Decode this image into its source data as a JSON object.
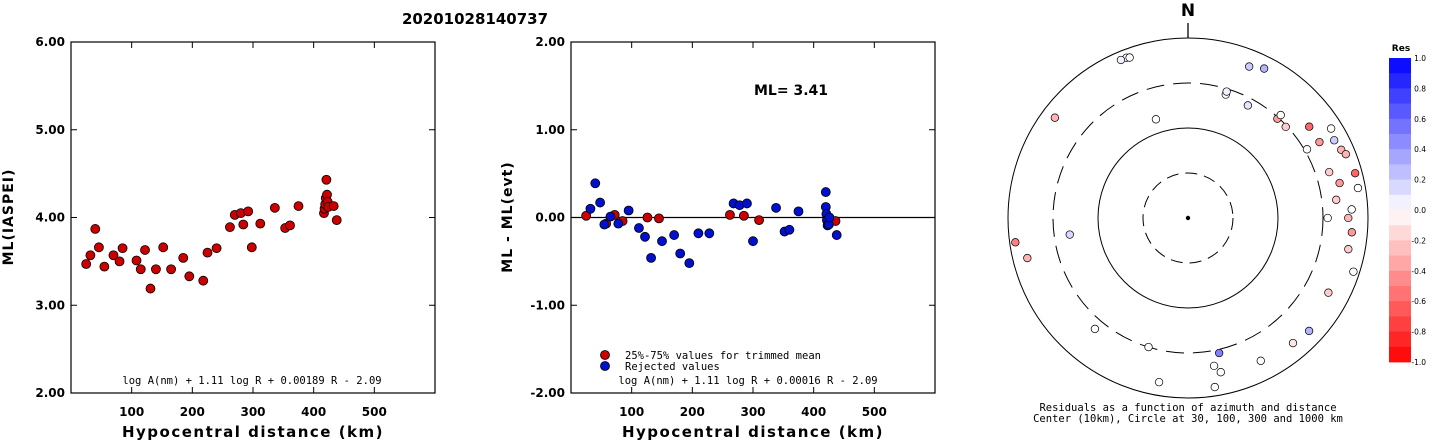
{
  "title": "20201028140737",
  "colors": {
    "accepted": "#cc0000",
    "rejected": "#0010cc",
    "axis": "#000000"
  },
  "chart_data": [
    {
      "type": "scatter",
      "xlabel": "Hypocentral distance (km)",
      "ylabel": "ML(IASPEI)",
      "xlim": [
        0,
        600
      ],
      "ylim": [
        2.0,
        6.0
      ],
      "xticks": [
        "100",
        "200",
        "300",
        "400",
        "500"
      ],
      "yticks": [
        "2.00",
        "3.00",
        "4.00",
        "5.00",
        "6.00"
      ],
      "formula": "log A(nm) + 1.11 log R + 0.00189 R - 2.09",
      "series": [
        {
          "color": "accepted",
          "points": [
            [
              25,
              3.47
            ],
            [
              32,
              3.57
            ],
            [
              40,
              3.87
            ],
            [
              46,
              3.66
            ],
            [
              55,
              3.44
            ],
            [
              70,
              3.57
            ],
            [
              80,
              3.5
            ],
            [
              85,
              3.65
            ],
            [
              108,
              3.51
            ],
            [
              115,
              3.41
            ],
            [
              122,
              3.63
            ],
            [
              131,
              3.19
            ],
            [
              140,
              3.41
            ],
            [
              152,
              3.66
            ],
            [
              165,
              3.41
            ],
            [
              185,
              3.54
            ],
            [
              195,
              3.33
            ],
            [
              218,
              3.28
            ],
            [
              225,
              3.6
            ],
            [
              240,
              3.65
            ],
            [
              262,
              3.89
            ],
            [
              270,
              4.03
            ],
            [
              280,
              4.05
            ],
            [
              284,
              3.92
            ],
            [
              292,
              4.07
            ],
            [
              298,
              3.66
            ],
            [
              312,
              3.93
            ],
            [
              336,
              4.11
            ],
            [
              353,
              3.88
            ],
            [
              361,
              3.91
            ],
            [
              375,
              4.13
            ],
            [
              417,
              4.05
            ],
            [
              418,
              4.1
            ],
            [
              419,
              4.15
            ],
            [
              420,
              4.22
            ],
            [
              421,
              4.43
            ],
            [
              422,
              4.26
            ],
            [
              423,
              4.18
            ],
            [
              424,
              4.12
            ],
            [
              433,
              4.13
            ],
            [
              438,
              3.97
            ]
          ]
        }
      ]
    },
    {
      "type": "scatter",
      "xlabel": "Hypocentral distance (km)",
      "ylabel": "ML - ML(evt)",
      "xlim": [
        0,
        600
      ],
      "ylim": [
        -2.0,
        2.0
      ],
      "xticks": [
        "100",
        "200",
        "300",
        "400",
        "500"
      ],
      "yticks": [
        "-2.00",
        "-1.00",
        "0.00",
        "1.00",
        "2.00"
      ],
      "annotation": "ML= 3.41",
      "formula": "log A(nm) + 1.11 log R + 0.00016 R - 2.09",
      "legend": [
        {
          "label": "25%-75% values for trimmed mean",
          "color": "accepted"
        },
        {
          "label": "Rejected values",
          "color": "rejected"
        }
      ],
      "series": [
        {
          "color": "accepted",
          "points": [
            [
              25,
              0.02
            ],
            [
              58,
              -0.07
            ],
            [
              72,
              0.03
            ],
            [
              85,
              -0.04
            ],
            [
              126,
              0.0
            ],
            [
              145,
              -0.01
            ],
            [
              262,
              0.03
            ],
            [
              285,
              0.02
            ],
            [
              310,
              -0.03
            ],
            [
              422,
              -0.03
            ],
            [
              436,
              -0.04
            ]
          ]
        },
        {
          "color": "rejected",
          "points": [
            [
              32,
              0.1
            ],
            [
              40,
              0.39
            ],
            [
              48,
              0.17
            ],
            [
              55,
              -0.08
            ],
            [
              65,
              0.01
            ],
            [
              78,
              -0.07
            ],
            [
              95,
              0.08
            ],
            [
              112,
              -0.12
            ],
            [
              122,
              -0.22
            ],
            [
              132,
              -0.46
            ],
            [
              150,
              -0.27
            ],
            [
              170,
              -0.2
            ],
            [
              180,
              -0.41
            ],
            [
              195,
              -0.52
            ],
            [
              210,
              -0.18
            ],
            [
              228,
              -0.18
            ],
            [
              268,
              0.16
            ],
            [
              278,
              0.14
            ],
            [
              290,
              0.16
            ],
            [
              300,
              -0.27
            ],
            [
              338,
              0.11
            ],
            [
              352,
              -0.16
            ],
            [
              360,
              -0.14
            ],
            [
              375,
              0.07
            ],
            [
              420,
              0.29
            ],
            [
              420,
              0.12
            ],
            [
              421,
              0.04
            ],
            [
              422,
              -0.03
            ],
            [
              423,
              -0.09
            ],
            [
              425,
              -0.08
            ],
            [
              426,
              0.0
            ],
            [
              438,
              -0.2
            ]
          ]
        }
      ]
    },
    {
      "type": "scatter",
      "subtype": "polar",
      "north_label": "N",
      "circles_km": [
        30,
        100,
        300,
        1000
      ],
      "center_km": 10,
      "caption_line1": "Residuals as a function of azimuth and distance",
      "caption_line2": "Center (10km), Circle at 30, 100, 300 and 1000 km",
      "colorbar": {
        "title": "Res",
        "ticks": [
          "1.0",
          "0.8",
          "0.6",
          "0.4",
          "0.2",
          "0.0",
          "-0.2",
          "-0.4",
          "-0.6",
          "-0.8",
          "-1.0"
        ],
        "range": [
          -1.0,
          1.0
        ]
      },
      "points": [
        {
          "az": 339,
          "dist": 800,
          "res": 0.0
        },
        {
          "az": 340,
          "dist": 780,
          "res": 0.0
        },
        {
          "az": 337,
          "dist": 800,
          "res": 0.05
        },
        {
          "az": 307,
          "dist": 700,
          "res": -0.3
        },
        {
          "az": 262,
          "dist": 860,
          "res": -0.5
        },
        {
          "az": 256,
          "dist": 680,
          "res": -0.3
        },
        {
          "az": 262,
          "dist": 205,
          "res": 0.15
        },
        {
          "az": 342,
          "dist": 140,
          "res": 0.0
        },
        {
          "az": 17,
          "dist": 260,
          "res": 0.0
        },
        {
          "az": 17,
          "dist": 280,
          "res": 0.05
        },
        {
          "az": 28,
          "dist": 250,
          "res": 0.1
        },
        {
          "az": 42,
          "dist": 290,
          "res": -0.4
        },
        {
          "az": 47,
          "dist": 290,
          "res": -0.2
        },
        {
          "az": 42,
          "dist": 330,
          "res": 0.0
        },
        {
          "az": 60,
          "dist": 320,
          "res": 0.0
        },
        {
          "az": 90,
          "dist": 340,
          "res": 0.0
        },
        {
          "az": 101,
          "dist": 640,
          "res": -0.2
        },
        {
          "az": 90,
          "dist": 590,
          "res": -0.3
        },
        {
          "az": 22,
          "dist": 640,
          "res": 0.2
        },
        {
          "az": 27,
          "dist": 720,
          "res": 0.3
        },
        {
          "az": 53,
          "dist": 470,
          "res": -0.6
        },
        {
          "az": 60,
          "dist": 470,
          "res": -0.4
        },
        {
          "az": 72,
          "dist": 430,
          "res": -0.2
        },
        {
          "az": 77,
          "dist": 520,
          "res": -0.4
        },
        {
          "az": 83,
          "dist": 440,
          "res": -0.2
        },
        {
          "az": 95,
          "dist": 660,
          "res": -0.4
        },
        {
          "az": 62,
          "dist": 680,
          "res": 0.2
        },
        {
          "az": 58,
          "dist": 740,
          "res": 0.0
        },
        {
          "az": 66,
          "dist": 720,
          "res": -0.3
        },
        {
          "az": 68,
          "dist": 770,
          "res": -0.3
        },
        {
          "az": 75,
          "dist": 830,
          "res": -0.6
        },
        {
          "az": 87,
          "dist": 650,
          "res": 0.0
        },
        {
          "az": 108,
          "dist": 850,
          "res": 0.0
        },
        {
          "az": 118,
          "dist": 570,
          "res": -0.2
        },
        {
          "az": 140,
          "dist": 640,
          "res": -0.1
        },
        {
          "az": 153,
          "dist": 590,
          "res": 0.0
        },
        {
          "az": 167,
          "dist": 330,
          "res": 0.5
        },
        {
          "az": 197,
          "dist": 300,
          "res": 0.0
        },
        {
          "az": 220,
          "dist": 390,
          "res": 0.0
        },
        {
          "az": 170,
          "dist": 450,
          "res": 0.0
        },
        {
          "az": 168,
          "dist": 550,
          "res": 0.0
        },
        {
          "az": 133,
          "dist": 680,
          "res": 0.3
        },
        {
          "az": 80,
          "dist": 820,
          "res": 0.0
        },
        {
          "az": 190,
          "dist": 700,
          "res": 0.0
        },
        {
          "az": 171,
          "dist": 790,
          "res": 0.0
        }
      ]
    }
  ]
}
